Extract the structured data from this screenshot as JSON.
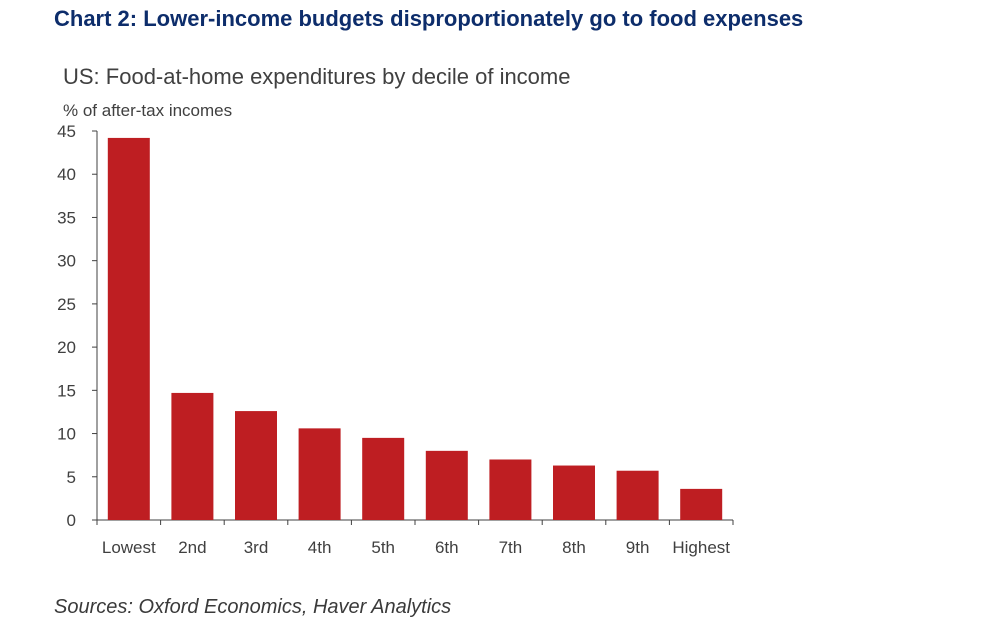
{
  "header": {
    "title": "Chart 2: Lower-income budgets disproportionately go to food expenses"
  },
  "footer": {
    "source": "Sources: Oxford Economics, Haver Analytics"
  },
  "colors": {
    "bar": "#be1e22",
    "title": "#0d2d6b",
    "axis": "#404040"
  },
  "chart_data": {
    "type": "bar",
    "title": "US: Food-at-home expenditures by decile of income",
    "ylabel": "% of after-tax incomes",
    "xlabel": "",
    "categories": [
      "Lowest",
      "2nd",
      "3rd",
      "4th",
      "5th",
      "6th",
      "7th",
      "8th",
      "9th",
      "Highest"
    ],
    "values": [
      44.2,
      14.7,
      12.6,
      10.6,
      9.5,
      8.0,
      7.0,
      6.3,
      5.7,
      3.6
    ],
    "ylim": [
      0,
      45
    ],
    "yticks": [
      0,
      5,
      10,
      15,
      20,
      25,
      30,
      35,
      40,
      45
    ],
    "grid": false,
    "legend": "none"
  }
}
